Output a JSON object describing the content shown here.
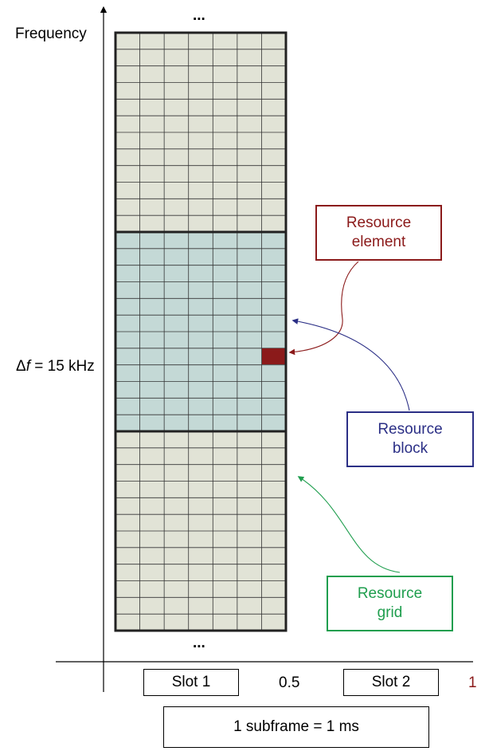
{
  "axis": {
    "frequency_label": "Frequency",
    "delta_f_prefix": "Δ",
    "delta_f_italic": "f",
    "delta_f_value": " = 15 kHz",
    "ellipsis_top": "...",
    "ellipsis_bottom": "..."
  },
  "callouts": {
    "resource_element": {
      "line1": "Resource",
      "line2": "element",
      "color": "#8b1a1a"
    },
    "resource_block": {
      "line1": "Resource",
      "line2": "block",
      "color": "#2b2f86"
    },
    "resource_grid": {
      "line1": "Resource",
      "line2": "grid",
      "color": "#1f9e4e"
    }
  },
  "time_axis": {
    "slot1": "Slot 1",
    "half": "0.5",
    "slot2": "Slot 2",
    "one": "1",
    "subframe": "1 subframe = 1 ms"
  },
  "colors": {
    "grid_fill": "#e1e3d6",
    "block_fill": "#c4d9d6",
    "element_fill": "#8b1a1a",
    "grid_line": "#333333",
    "one_label": "#8b1a1a"
  }
}
